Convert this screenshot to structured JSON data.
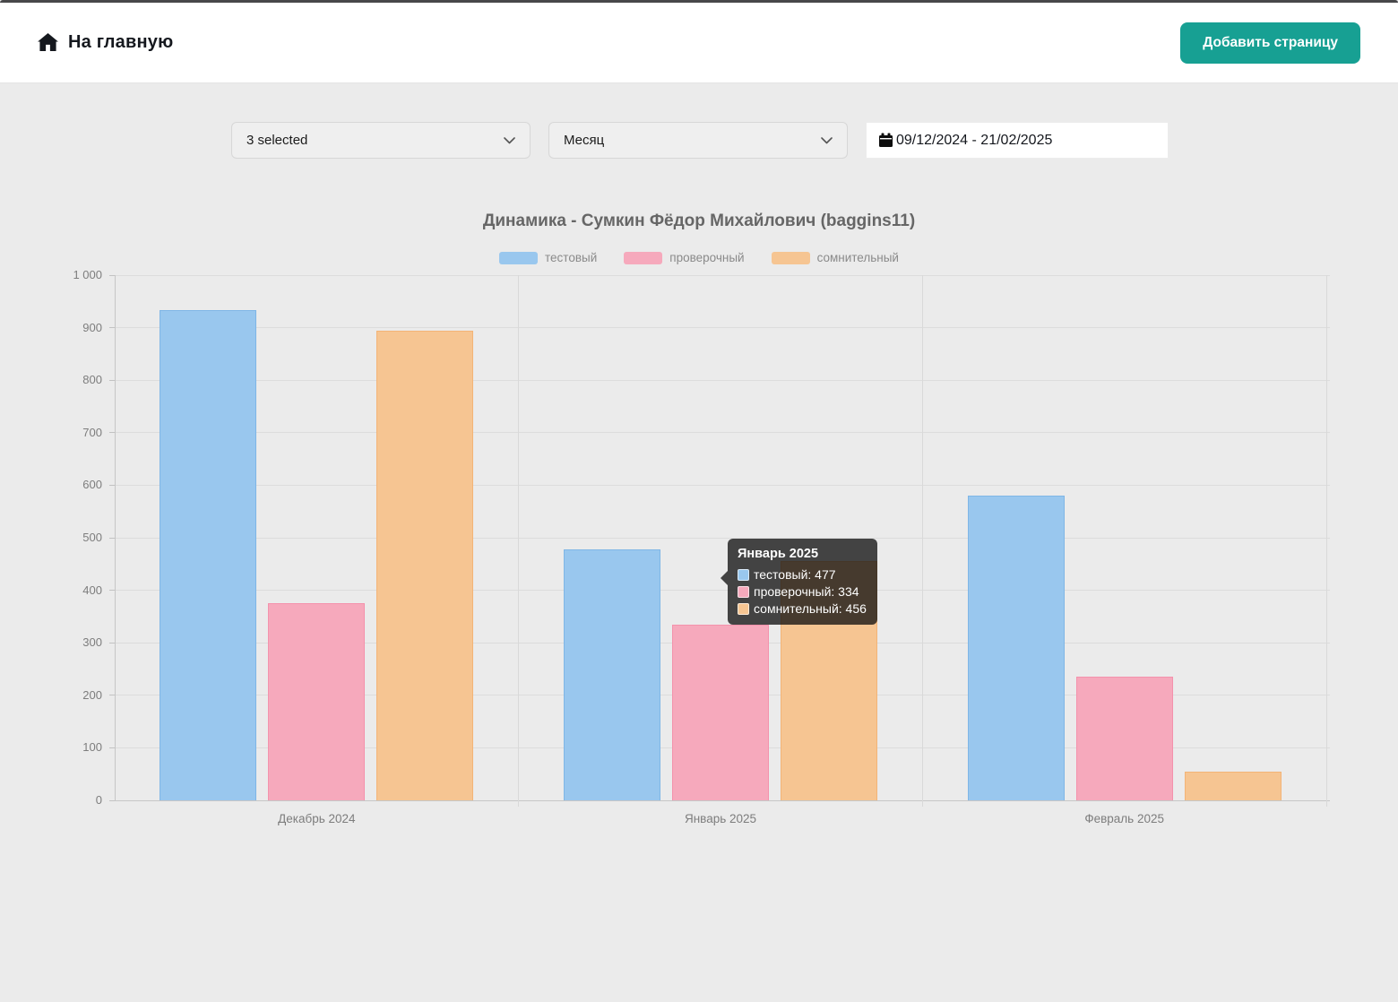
{
  "header": {
    "home_label": "На главную",
    "add_page_button": "Добавить страницу"
  },
  "filters": {
    "selected_dropdown": "3 selected",
    "period_dropdown": "Месяц",
    "date_range": "09/12/2024 - 21/02/2025"
  },
  "chart_data": {
    "type": "bar",
    "title": "Динамика - Сумкин Фёдор Михайлович (baggins11)",
    "categories": [
      "Декабрь 2024",
      "Январь 2025",
      "Февраль 2025"
    ],
    "series": [
      {
        "name": "тестовый",
        "color": "#99c7ee",
        "border": "#7fb6e6",
        "values": [
          933,
          477,
          580
        ]
      },
      {
        "name": "проверочный",
        "color": "#f6a9bc",
        "border": "#f492ac",
        "values": [
          375,
          334,
          235
        ]
      },
      {
        "name": "сомнительный",
        "color": "#f6c592",
        "border": "#f3b477",
        "values": [
          894,
          456,
          54
        ]
      }
    ],
    "ylim": [
      0,
      1000
    ],
    "y_ticks": [
      "0",
      "100",
      "200",
      "300",
      "400",
      "500",
      "600",
      "700",
      "800",
      "900",
      "1 000"
    ],
    "grid": true,
    "legend_position": "top"
  },
  "tooltip": {
    "title": "Январь 2025",
    "rows": [
      {
        "label": "тестовый",
        "value": "477"
      },
      {
        "label": "проверочный",
        "value": "334"
      },
      {
        "label": "сомнительный",
        "value": "456"
      }
    ]
  },
  "colors": {
    "accent_teal": "#17a093",
    "page_background": "#ebebeb",
    "header_background": "#ffffff",
    "axis_text": "#7d7d7d",
    "title_text": "#666666"
  }
}
